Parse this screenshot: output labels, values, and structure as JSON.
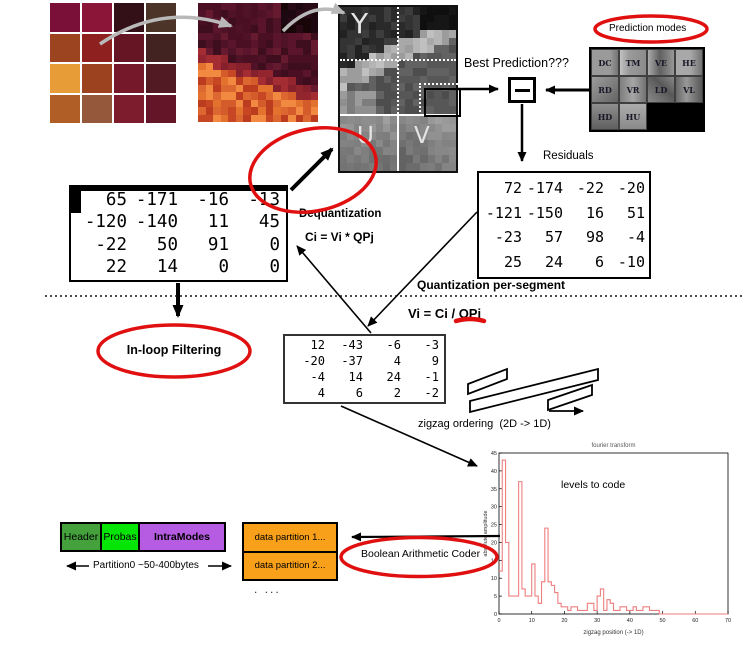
{
  "labels": {
    "prediction_modes": "Prediction modes",
    "best_prediction": "Best Prediction???",
    "residuals": "Residuals",
    "dequantization": "Dequantization",
    "dequant_formula": "Ci = Vi * QPj",
    "quantization": "Quantization per-segment",
    "quant_formula": "Vi = Ci / QPj",
    "inloop_filtering": "In-loop Filtering",
    "zigzag_ordering": "zigzag ordering  (2D -> 1D)",
    "boolean_coder": "Boolean Arithmetic Coder",
    "partition0": "Partition0 ~50-400bytes",
    "more_dots": ". ...",
    "y": "Y",
    "u": "U",
    "v": "V"
  },
  "prediction": {
    "modes": [
      "DC",
      "TM",
      "VE",
      "HE",
      "RD",
      "VR",
      "LD",
      "VL",
      "HD",
      "HU"
    ]
  },
  "matrices": {
    "dequantized": [
      [
        65,
        -171,
        -16,
        -13
      ],
      [
        -120,
        -140,
        11,
        45
      ],
      [
        -22,
        50,
        91,
        0
      ],
      [
        22,
        14,
        0,
        0
      ]
    ],
    "residuals": [
      [
        72,
        -174,
        -22,
        -20
      ],
      [
        -121,
        -150,
        16,
        51
      ],
      [
        -23,
        57,
        98,
        -4
      ],
      [
        25,
        24,
        6,
        -10
      ]
    ],
    "quantized": [
      [
        12,
        -43,
        -6,
        -3
      ],
      [
        -20,
        -37,
        4,
        9
      ],
      [
        -4,
        14,
        24,
        -1
      ],
      [
        4,
        6,
        2,
        -2
      ]
    ]
  },
  "stream": {
    "header": "Header",
    "probas": "Probas",
    "intramodes": "IntraModes",
    "dp1": "data partition 1...",
    "dp2": "data partition 2..."
  },
  "chart_data": {
    "type": "line",
    "style": "step-histogram",
    "title": "fourier transform",
    "xlabel": "zigzag position  (-> 1D)",
    "ylabel": "absolute amplitude",
    "annotation": "levels to code",
    "xlim": [
      0,
      70
    ],
    "ylim": [
      0,
      45
    ],
    "x_ticks": [
      0,
      10,
      20,
      30,
      40,
      50,
      60,
      70
    ],
    "y_ticks": [
      0,
      5,
      10,
      15,
      20,
      25,
      30,
      35,
      40,
      45
    ],
    "x": "zigzag index 0..70",
    "values": [
      12,
      43,
      20,
      5,
      5,
      5,
      37,
      7,
      5,
      5,
      14,
      5,
      3,
      9,
      24,
      9,
      8,
      6,
      3,
      2,
      2,
      1,
      2,
      2,
      1,
      1,
      1,
      3,
      3,
      1,
      5,
      7,
      1,
      4,
      3,
      1,
      1,
      2,
      2,
      1,
      1,
      2,
      1,
      1,
      2,
      2,
      1,
      1,
      1,
      0,
      0,
      0,
      0,
      0,
      0,
      0,
      0,
      0,
      0,
      0,
      0,
      0,
      0,
      0,
      0,
      0,
      0,
      0,
      0,
      0,
      0
    ],
    "line_color": "#ee7f7f"
  },
  "colors": {
    "accent_red": "#e01010",
    "header_green": "#44a13c",
    "probas_green": "#06e506",
    "intra_purple": "#b55ce3",
    "partition_orange": "#f8a019",
    "photo_cells": [
      "#7a1038",
      "#8a1538",
      "#331017",
      "#4c3428",
      "#9c4420",
      "#8e2020",
      "#661524",
      "#432322",
      "#e89c38",
      "#9c421e",
      "#75182a",
      "#521a22",
      "#b05e26",
      "#96583a",
      "#7c1c2c",
      "#641628"
    ],
    "mb": {
      "vdark": [
        "#1d0710",
        "#270a16",
        "#170508"
      ],
      "dark": [
        "#4a0f22",
        "#5a142c",
        "#3e0d1e",
        "#661a30",
        "#501226"
      ],
      "mid": [
        "#93252f",
        "#a32d33",
        "#85202c"
      ],
      "bright": [
        "#d45c2a",
        "#e4722f",
        "#c74624",
        "#f18a40",
        "#dd6730",
        "#bb3c1e"
      ]
    },
    "ymb": {
      "vdark": [
        "#0f0f0f",
        "#161616"
      ],
      "dark": [
        "#2a2a2a",
        "#333333",
        "#222222",
        "#3d3d3d"
      ],
      "mid": [
        "#575757",
        "#626262",
        "#4d4d4d"
      ],
      "low": [
        "#8f8f8f",
        "#7d7d7d",
        "#9b9b9b"
      ],
      "bright": [
        "#a8a8a8",
        "#b5b5b5",
        "#9c9c9c",
        "#c0c0c0"
      ]
    }
  }
}
